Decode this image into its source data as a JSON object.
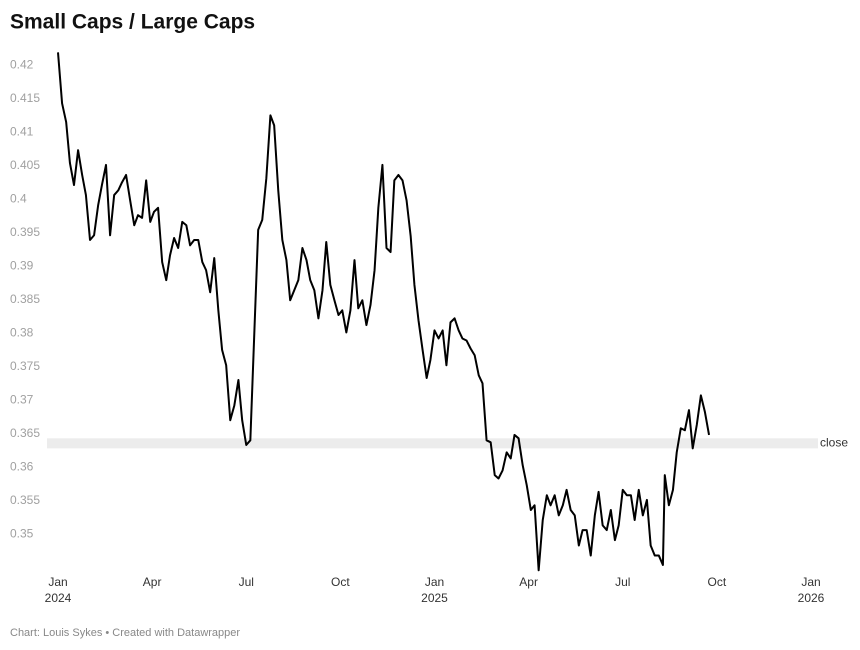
{
  "chart_data": {
    "type": "line",
    "title": "Small Caps / Large Caps",
    "source": "Chart: Louis Sykes • Created with Datawrapper",
    "annotation": {
      "label": "close",
      "range": [
        0.3628,
        0.3643
      ]
    },
    "xlim": [
      0,
      24
    ],
    "xticks": [
      {
        "value": 0,
        "label": "Jan",
        "sublabel": "2024"
      },
      {
        "value": 3,
        "label": "Apr"
      },
      {
        "value": 6,
        "label": "Jul"
      },
      {
        "value": 9,
        "label": "Oct"
      },
      {
        "value": 12,
        "label": "Jan",
        "sublabel": "2025"
      },
      {
        "value": 15,
        "label": "Apr"
      },
      {
        "value": 18,
        "label": "Jul"
      },
      {
        "value": 21,
        "label": "Oct"
      },
      {
        "value": 24,
        "label": "Jan",
        "sublabel": "2026"
      }
    ],
    "ylim": [
      0.344,
      0.423
    ],
    "yticks": [
      0.35,
      0.355,
      0.36,
      0.365,
      0.37,
      0.375,
      0.38,
      0.385,
      0.39,
      0.395,
      0.4,
      0.405,
      0.41,
      0.415,
      0.42
    ],
    "grid": false,
    "series": [
      {
        "color": "#000000",
        "x": [
          0,
          0.13,
          0.26,
          0.38,
          0.51,
          0.64,
          0.77,
          0.89,
          1.02,
          1.15,
          1.28,
          1.4,
          1.53,
          1.66,
          1.79,
          1.92,
          2.04,
          2.17,
          2.3,
          2.43,
          2.55,
          2.68,
          2.81,
          2.94,
          3.06,
          3.19,
          3.32,
          3.45,
          3.57,
          3.7,
          3.83,
          3.96,
          4.09,
          4.21,
          4.34,
          4.47,
          4.6,
          4.72,
          4.85,
          4.98,
          5.11,
          5.23,
          5.36,
          5.49,
          5.62,
          5.75,
          5.87,
          6.0,
          6.13,
          6.26,
          6.38,
          6.51,
          6.64,
          6.77,
          6.89,
          7.02,
          7.15,
          7.28,
          7.4,
          7.53,
          7.66,
          7.79,
          7.92,
          8.04,
          8.17,
          8.3,
          8.43,
          8.55,
          8.68,
          8.81,
          8.94,
          9.06,
          9.19,
          9.32,
          9.45,
          9.57,
          9.7,
          9.83,
          9.96,
          10.09,
          10.21,
          10.34,
          10.47,
          10.6,
          10.72,
          10.85,
          10.98,
          11.11,
          11.24,
          11.36,
          11.49,
          11.62,
          11.75,
          11.87,
          12.0,
          12.13,
          12.26,
          12.38,
          12.51,
          12.64,
          12.77,
          12.89,
          13.02,
          13.15,
          13.28,
          13.41,
          13.53,
          13.66,
          13.79,
          13.92,
          14.04,
          14.17,
          14.3,
          14.43,
          14.55,
          14.68,
          14.81,
          14.94,
          15.07,
          15.19,
          15.32,
          15.45,
          15.58,
          15.7,
          15.83,
          15.96,
          16.09,
          16.21,
          16.34,
          16.47,
          16.6,
          16.72,
          16.85,
          16.98,
          17.11,
          17.23,
          17.36,
          17.49,
          17.62,
          17.75,
          17.87,
          18.0,
          18.13,
          18.26,
          18.38,
          18.51,
          18.64,
          18.77,
          18.89,
          19.02,
          19.15,
          19.28,
          19.34,
          19.47,
          19.6,
          19.72,
          19.85,
          19.98,
          20.11,
          20.23,
          20.36,
          20.49,
          20.62,
          20.75
        ],
        "values": [
          0.4219,
          0.4143,
          0.4115,
          0.4054,
          0.4021,
          0.4073,
          0.4036,
          0.4006,
          0.3939,
          0.3946,
          0.3991,
          0.4021,
          0.4051,
          0.3946,
          0.4006,
          0.4013,
          0.4025,
          0.4036,
          0.3998,
          0.3961,
          0.3976,
          0.3972,
          0.4028,
          0.3966,
          0.3981,
          0.3987,
          0.3906,
          0.3879,
          0.3916,
          0.3942,
          0.3927,
          0.3966,
          0.3961,
          0.3931,
          0.3939,
          0.3939,
          0.3906,
          0.3894,
          0.3861,
          0.3912,
          0.3834,
          0.3775,
          0.3752,
          0.367,
          0.3692,
          0.373,
          0.367,
          0.3633,
          0.364,
          0.3804,
          0.3954,
          0.3969,
          0.4031,
          0.4125,
          0.411,
          0.4013,
          0.3939,
          0.3909,
          0.3849,
          0.3864,
          0.3879,
          0.3927,
          0.3909,
          0.3879,
          0.3864,
          0.3822,
          0.3864,
          0.3936,
          0.3872,
          0.3849,
          0.3827,
          0.3834,
          0.3801,
          0.3834,
          0.3909,
          0.3837,
          0.3849,
          0.3812,
          0.3842,
          0.3894,
          0.3987,
          0.4051,
          0.3927,
          0.3921,
          0.4028,
          0.4036,
          0.4028,
          0.3998,
          0.3945,
          0.3872,
          0.3819,
          0.3775,
          0.3733,
          0.376,
          0.3804,
          0.3792,
          0.3804,
          0.3752,
          0.3816,
          0.3822,
          0.3804,
          0.3792,
          0.3789,
          0.3777,
          0.3767,
          0.3737,
          0.3725,
          0.364,
          0.3637,
          0.3588,
          0.3583,
          0.3595,
          0.3622,
          0.3613,
          0.3648,
          0.3643,
          0.3603,
          0.3573,
          0.3536,
          0.3543,
          0.3446,
          0.3521,
          0.3558,
          0.3543,
          0.3558,
          0.3528,
          0.3543,
          0.3566,
          0.3536,
          0.3528,
          0.3483,
          0.3506,
          0.3506,
          0.3468,
          0.3528,
          0.3563,
          0.3513,
          0.3506,
          0.3536,
          0.3491,
          0.3513,
          0.3566,
          0.3558,
          0.3558,
          0.3521,
          0.3566,
          0.3528,
          0.3551,
          0.3483,
          0.3468,
          0.3468,
          0.3454,
          0.3588,
          0.3543,
          0.3566,
          0.3622,
          0.3658,
          0.3655,
          0.3685,
          0.3628,
          0.3663,
          0.3707,
          0.3682,
          0.3648
        ]
      }
    ]
  }
}
